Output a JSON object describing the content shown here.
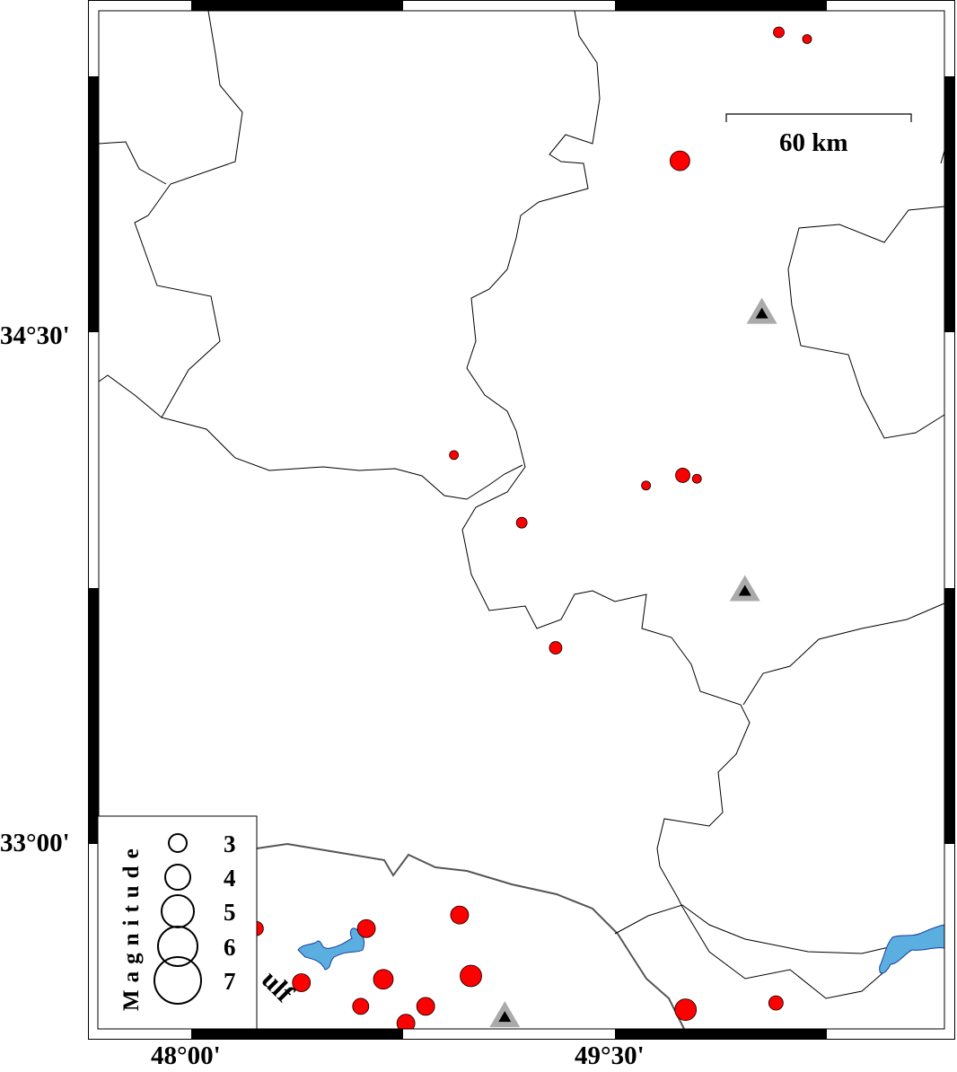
{
  "map": {
    "lon_range": [
      47.64,
      50.67
    ],
    "lat_range": [
      32.45,
      35.45
    ],
    "x_tick_labels": [
      "48°00'",
      "49°30'"
    ],
    "x_ticks": [
      48.0,
      49.5
    ],
    "y_tick_labels": [
      "34°30'",
      "33°00'"
    ],
    "y_ticks": [
      34.5,
      33.0
    ],
    "scale_bar_label": "60 km",
    "water_label": "ulf",
    "colors": {
      "event": "#ff0000",
      "water": "#5aafe0",
      "station_outer": "#aaaaaa",
      "station_inner": "#000000",
      "border": "#000000"
    }
  },
  "legend": {
    "title": "Magnitude",
    "entries": [
      {
        "mag": 3,
        "label": "3"
      },
      {
        "mag": 4,
        "label": "4"
      },
      {
        "mag": 5,
        "label": "5"
      },
      {
        "mag": 6,
        "label": "6"
      },
      {
        "mag": 7,
        "label": "7"
      }
    ]
  },
  "events": [
    {
      "lon": 50.08,
      "lat": 35.4,
      "mag": 2.0
    },
    {
      "lon": 50.18,
      "lat": 35.38,
      "mag": 1.75
    },
    {
      "lon": 49.73,
      "lat": 35.02,
      "mag": 3.25
    },
    {
      "lon": 48.93,
      "lat": 34.15,
      "mag": 1.75
    },
    {
      "lon": 49.74,
      "lat": 34.09,
      "mag": 2.5
    },
    {
      "lon": 49.79,
      "lat": 34.08,
      "mag": 1.75
    },
    {
      "lon": 49.61,
      "lat": 34.06,
      "mag": 1.75
    },
    {
      "lon": 49.17,
      "lat": 33.95,
      "mag": 2.0
    },
    {
      "lon": 49.29,
      "lat": 33.58,
      "mag": 2.25
    },
    {
      "lon": 48.23,
      "lat": 32.75,
      "mag": 2.5
    },
    {
      "lon": 48.62,
      "lat": 32.75,
      "mag": 3.0
    },
    {
      "lon": 48.95,
      "lat": 32.79,
      "mag": 3.0
    },
    {
      "lon": 48.39,
      "lat": 32.59,
      "mag": 3.0
    },
    {
      "lon": 48.68,
      "lat": 32.6,
      "mag": 3.25
    },
    {
      "lon": 48.99,
      "lat": 32.61,
      "mag": 3.5
    },
    {
      "lon": 48.6,
      "lat": 32.52,
      "mag": 2.75
    },
    {
      "lon": 48.83,
      "lat": 32.52,
      "mag": 3.0
    },
    {
      "lon": 48.76,
      "lat": 32.47,
      "mag": 3.0
    },
    {
      "lon": 49.75,
      "lat": 32.51,
      "mag": 3.5
    },
    {
      "lon": 50.07,
      "lat": 32.53,
      "mag": 2.5
    }
  ],
  "stations": [
    {
      "lon": 50.02,
      "lat": 34.57
    },
    {
      "lon": 49.96,
      "lat": 33.75
    },
    {
      "lon": 49.11,
      "lat": 32.49
    }
  ]
}
